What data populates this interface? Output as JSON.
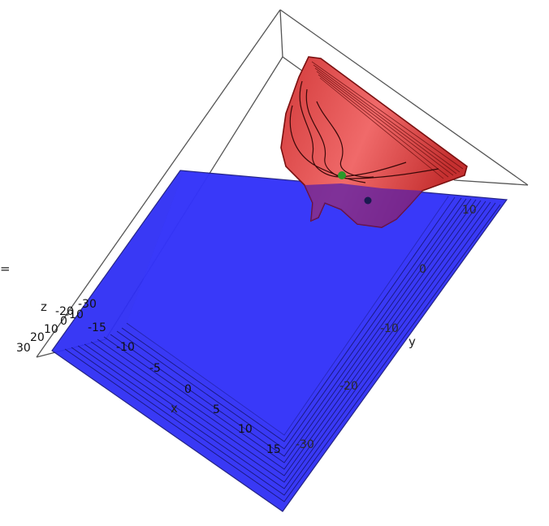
{
  "plot": {
    "axes": {
      "x_label": "x",
      "y_label": "y",
      "z_label": "z"
    },
    "x_ticks": [
      "-15",
      "-10",
      "-5",
      "0",
      "5",
      "10",
      "15"
    ],
    "y_ticks": [
      "10",
      "0",
      "-10",
      "-20",
      "-30"
    ],
    "z_ticks": [
      "30",
      "20",
      "10",
      "0",
      "-10",
      "-20",
      "-30"
    ],
    "edge_label": "=",
    "colors": {
      "plane": "#2f2ff5",
      "plane_edge": "#1a1a80",
      "surface": "#e04848",
      "surface_dark": "#a02020",
      "point_green": "#2a9a2a",
      "point_dark": "#1a1a50",
      "box": "#555555"
    }
  }
}
